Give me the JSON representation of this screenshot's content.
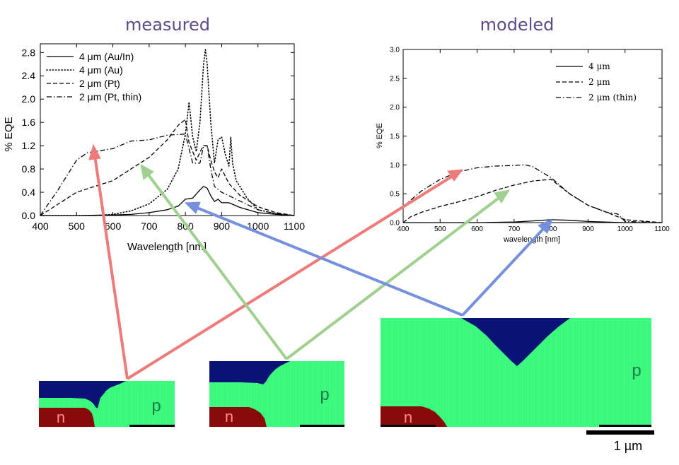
{
  "headings": {
    "left": "measured",
    "right": "modeled"
  },
  "chart_data": [
    {
      "type": "line",
      "xlabel": "Wavelength [nm]",
      "ylabel": "% EQE",
      "xlim": [
        400,
        1100
      ],
      "ylim": [
        0,
        2.95
      ],
      "xticks": [
        "400",
        "500",
        "600",
        "700",
        "800",
        "900",
        "1000",
        "1100"
      ],
      "yticks": [
        "0.0",
        "0.4",
        "0.8",
        "1.2",
        "1.6",
        "2.0",
        "2.4",
        "2.8"
      ],
      "legend_position": "top-left",
      "series": [
        {
          "name": "4 μm (Au/In)",
          "style": "solid",
          "x": [
            400,
            500,
            600,
            650,
            700,
            750,
            780,
            800,
            820,
            840,
            850,
            860,
            870,
            880,
            890,
            900,
            920,
            950,
            1000,
            1050,
            1100
          ],
          "y": [
            0,
            0,
            0.01,
            0.02,
            0.05,
            0.1,
            0.16,
            0.28,
            0.3,
            0.44,
            0.5,
            0.47,
            0.34,
            0.24,
            0.28,
            0.22,
            0.22,
            0.14,
            0.05,
            0.02,
            0
          ]
        },
        {
          "name": "4 μm (Au)",
          "style": "dotted",
          "x": [
            400,
            550,
            600,
            650,
            700,
            750,
            780,
            800,
            810,
            820,
            830,
            840,
            850,
            855,
            860,
            870,
            880,
            890,
            900,
            910,
            920,
            925,
            930,
            940,
            950,
            970,
            1000,
            1050,
            1100
          ],
          "y": [
            0,
            0,
            0.02,
            0.08,
            0.2,
            0.45,
            0.8,
            1.4,
            1.95,
            1.35,
            1.1,
            1.6,
            2.6,
            2.85,
            2.6,
            1.6,
            0.9,
            1.3,
            1.35,
            1.05,
            0.85,
            1.35,
            0.9,
            0.6,
            0.5,
            0.3,
            0.1,
            0.03,
            0
          ]
        },
        {
          "name": "2 μm (Pt)",
          "style": "dashed",
          "x": [
            400,
            450,
            500,
            550,
            600,
            650,
            700,
            750,
            780,
            800,
            810,
            830,
            845,
            850,
            860,
            870,
            880,
            890,
            900,
            920,
            950,
            1000,
            1050,
            1100
          ],
          "y": [
            0,
            0.2,
            0.4,
            0.5,
            0.6,
            0.8,
            1.0,
            1.3,
            1.55,
            1.65,
            1.25,
            0.95,
            1.15,
            1.2,
            1.2,
            0.95,
            0.75,
            0.65,
            0.8,
            0.55,
            0.35,
            0.15,
            0.05,
            0
          ]
        },
        {
          "name": "2 μm (Pt, thin)",
          "style": "dashdot",
          "x": [
            400,
            450,
            500,
            530,
            550,
            600,
            650,
            700,
            750,
            800,
            820,
            840,
            850,
            860,
            870,
            880,
            900,
            950,
            1000,
            1050,
            1100
          ],
          "y": [
            0,
            0.45,
            0.95,
            1.08,
            1.1,
            1.15,
            1.28,
            1.3,
            1.38,
            1.4,
            0.9,
            0.9,
            1.2,
            1.2,
            0.8,
            0.5,
            0.4,
            0.25,
            0.1,
            0.03,
            0
          ]
        }
      ]
    },
    {
      "type": "line",
      "xlabel": "wavelength [nm]",
      "ylabel": "% EQE",
      "xlim": [
        400,
        1100
      ],
      "ylim": [
        0,
        3.0
      ],
      "xticks": [
        "400",
        "500",
        "600",
        "700",
        "800",
        "900",
        "1000",
        "1100"
      ],
      "yticks": [
        "0.0",
        "0.5",
        "1.0",
        "1.5",
        "2.0",
        "2.5",
        "3.0"
      ],
      "legend_position": "top-right",
      "series": [
        {
          "name": "4 μm",
          "style": "solid",
          "x": [
            400,
            600,
            700,
            750,
            800,
            850,
            900,
            1000,
            1100
          ],
          "y": [
            0,
            0,
            0.01,
            0.03,
            0.05,
            0.04,
            0.02,
            0,
            0
          ]
        },
        {
          "name": "2 μm",
          "style": "dashed",
          "x": [
            400,
            420,
            450,
            500,
            550,
            600,
            650,
            700,
            750,
            800,
            850,
            900,
            950,
            1000,
            1100
          ],
          "y": [
            0,
            0.1,
            0.18,
            0.28,
            0.36,
            0.45,
            0.56,
            0.65,
            0.72,
            0.75,
            0.5,
            0.3,
            0.18,
            0.05,
            0
          ]
        },
        {
          "name": "2 μm (thin)",
          "style": "dashdot",
          "x": [
            400,
            450,
            500,
            550,
            600,
            650,
            700,
            730,
            750,
            800,
            850,
            900,
            950,
            980,
            1000,
            1100
          ],
          "y": [
            0.28,
            0.55,
            0.75,
            0.88,
            0.95,
            0.98,
            0.99,
            1.0,
            0.97,
            0.78,
            0.5,
            0.3,
            0.18,
            0.15,
            0.02,
            0
          ]
        }
      ]
    }
  ],
  "panels": [
    {
      "p_label": "p",
      "n_label": "n"
    },
    {
      "p_label": "p",
      "n_label": "n"
    },
    {
      "p_label": "p",
      "n_label": "n"
    }
  ],
  "scalebar": {
    "label": "1 µm"
  },
  "colors": {
    "heading": "#5b4a8a",
    "p_region": "#3dfb7e",
    "n_region": "#8a0a0a",
    "top_region": "#0a1478",
    "arrow_red": "#ef7a7a",
    "arrow_green": "#9fd08e",
    "arrow_blue": "#7591dd"
  }
}
